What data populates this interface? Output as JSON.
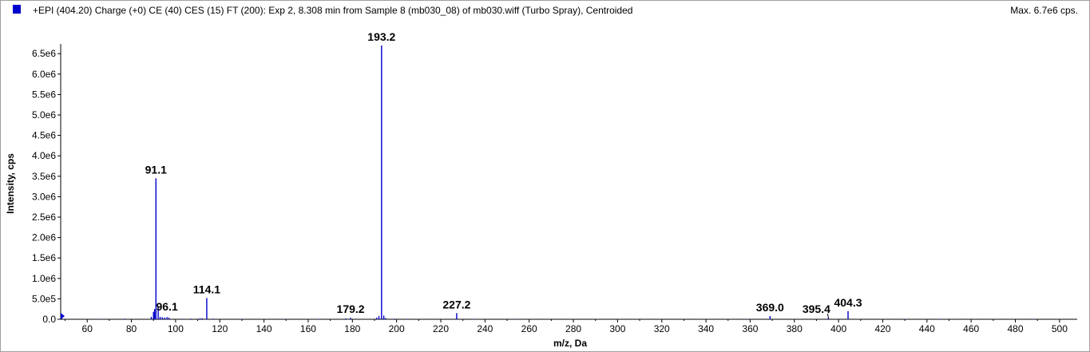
{
  "header": {
    "title": "+EPI (404.20) Charge (+0) CE (40) CES (15) FT (200): Exp 2, 8.308 min from Sample 8 (mb030_08) of mb030.wiff (Turbo Spray), Centroided",
    "max_label": "Max. 6.7e6 cps.",
    "series_color": "#0000cc"
  },
  "chart_data": {
    "type": "bar",
    "xlabel": "m/z, Da",
    "ylabel": "Intensity, cps",
    "xlim": [
      48,
      508
    ],
    "ylim": [
      0,
      6700000.0
    ],
    "grid": false,
    "x_ticks": [
      60,
      80,
      100,
      120,
      140,
      160,
      180,
      200,
      220,
      240,
      260,
      280,
      300,
      320,
      340,
      360,
      380,
      400,
      420,
      440,
      460,
      480,
      500
    ],
    "y_ticks": [
      {
        "value": 0,
        "label": "0.0"
      },
      {
        "value": 500000,
        "label": "5.0e5"
      },
      {
        "value": 1000000,
        "label": "1.0e6"
      },
      {
        "value": 1500000,
        "label": "1.5e6"
      },
      {
        "value": 2000000,
        "label": "2.0e6"
      },
      {
        "value": 2500000,
        "label": "2.5e6"
      },
      {
        "value": 3000000,
        "label": "3.0e6"
      },
      {
        "value": 3500000,
        "label": "3.5e6"
      },
      {
        "value": 4000000,
        "label": "4.0e6"
      },
      {
        "value": 4500000,
        "label": "4.5e6"
      },
      {
        "value": 5000000,
        "label": "5.0e6"
      },
      {
        "value": 5500000,
        "label": "5.5e6"
      },
      {
        "value": 6000000,
        "label": "6.0e6"
      },
      {
        "value": 6500000,
        "label": "6.5e6"
      }
    ],
    "peaks": [
      {
        "mz": 48.5,
        "intensity": 60000
      },
      {
        "mz": 65.0,
        "intensity": 8000
      },
      {
        "mz": 77.0,
        "intensity": 15000
      },
      {
        "mz": 89.0,
        "intensity": 60000
      },
      {
        "mz": 90.0,
        "intensity": 180000
      },
      {
        "mz": 90.5,
        "intensity": 250000
      },
      {
        "mz": 91.1,
        "intensity": 3450000,
        "label": "91.1"
      },
      {
        "mz": 92.1,
        "intensity": 300000
      },
      {
        "mz": 93.0,
        "intensity": 60000
      },
      {
        "mz": 94.0,
        "intensity": 50000
      },
      {
        "mz": 95.0,
        "intensity": 40000
      },
      {
        "mz": 96.1,
        "intensity": 55000,
        "label": "96.1"
      },
      {
        "mz": 97.0,
        "intensity": 40000
      },
      {
        "mz": 103.0,
        "intensity": 12000
      },
      {
        "mz": 107.0,
        "intensity": 15000
      },
      {
        "mz": 111.0,
        "intensity": 20000
      },
      {
        "mz": 112.0,
        "intensity": 25000
      },
      {
        "mz": 114.1,
        "intensity": 520000,
        "label": "114.1"
      },
      {
        "mz": 117.0,
        "intensity": 15000
      },
      {
        "mz": 130.0,
        "intensity": 10000
      },
      {
        "mz": 150.0,
        "intensity": 8000
      },
      {
        "mz": 165.0,
        "intensity": 10000
      },
      {
        "mz": 177.0,
        "intensity": 20000
      },
      {
        "mz": 179.2,
        "intensity": 35000,
        "label": "179.2"
      },
      {
        "mz": 191.0,
        "intensity": 40000
      },
      {
        "mz": 192.0,
        "intensity": 80000
      },
      {
        "mz": 193.2,
        "intensity": 6700000,
        "label": "193.2"
      },
      {
        "mz": 194.2,
        "intensity": 90000
      },
      {
        "mz": 195.0,
        "intensity": 30000
      },
      {
        "mz": 199.0,
        "intensity": 15000
      },
      {
        "mz": 205.0,
        "intensity": 12000
      },
      {
        "mz": 227.2,
        "intensity": 150000,
        "label": "227.2"
      },
      {
        "mz": 235.0,
        "intensity": 10000
      },
      {
        "mz": 255.0,
        "intensity": 8000
      },
      {
        "mz": 300.0,
        "intensity": 6000
      },
      {
        "mz": 337.0,
        "intensity": 6000
      },
      {
        "mz": 360.0,
        "intensity": 8000
      },
      {
        "mz": 369.0,
        "intensity": 80000,
        "label": "369.0"
      },
      {
        "mz": 395.4,
        "intensity": 40000,
        "label": "395.4"
      },
      {
        "mz": 404.3,
        "intensity": 200000,
        "label": "404.3"
      },
      {
        "mz": 430.0,
        "intensity": 8000
      },
      {
        "mz": 446.0,
        "intensity": 10000
      },
      {
        "mz": 452.0,
        "intensity": 6000
      },
      {
        "mz": 470.0,
        "intensity": 6000
      },
      {
        "mz": 488.0,
        "intensity": 7000
      }
    ]
  }
}
